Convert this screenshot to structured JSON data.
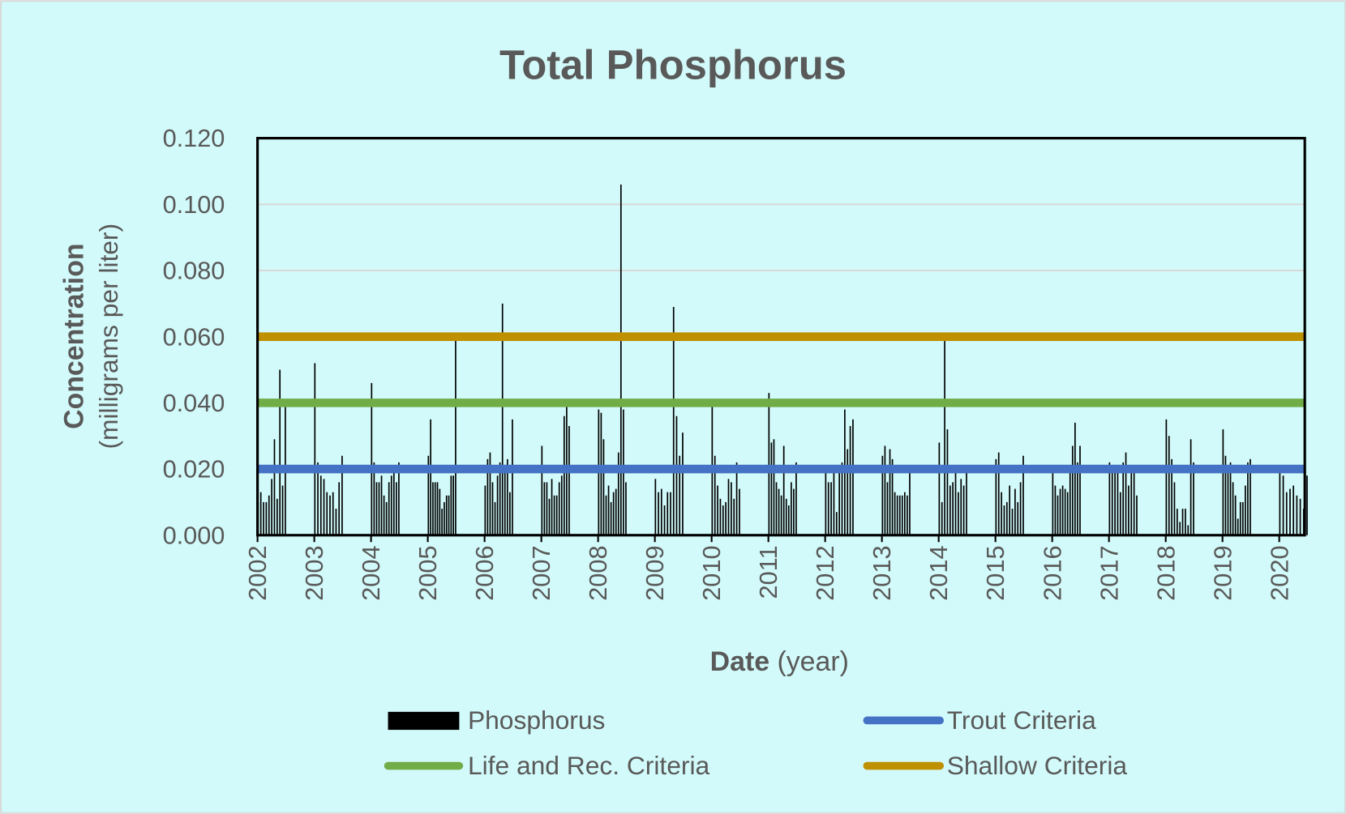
{
  "chart_data": {
    "type": "bar",
    "title": "Total Phosphorus",
    "xlabel_bold": "Date",
    "xlabel_rest": "(year)",
    "ylabel_bold": "Concentration",
    "ylabel_rest": "(milligrams per liter)",
    "ylim": [
      0,
      0.12
    ],
    "xlim": [
      2002,
      2020.45
    ],
    "yticks": [
      "0.000",
      "0.020",
      "0.040",
      "0.060",
      "0.080",
      "0.100",
      "0.120"
    ],
    "ytick_values": [
      0,
      0.02,
      0.04,
      0.06,
      0.08,
      0.1,
      0.12
    ],
    "xticks": [
      2002,
      2003,
      2004,
      2005,
      2006,
      2007,
      2008,
      2009,
      2010,
      2011,
      2012,
      2013,
      2014,
      2015,
      2016,
      2017,
      2018,
      2019,
      2020
    ],
    "grid": true,
    "legend_position": "bottom",
    "series": [
      {
        "name": "Phosphorus",
        "kind": "bar",
        "color": "#000000",
        "samples_by_year": {
          "2002": [
            0.01,
            0.013,
            0.01,
            0.01,
            0.012,
            0.017,
            0.029,
            0.011,
            0.05,
            0.015,
            0.04
          ],
          "2003": [
            0.052,
            0.022,
            0.018,
            0.017,
            0.013,
            0.012,
            0.013,
            0.008,
            0.016,
            0.024
          ],
          "2004": [
            0.046,
            0.022,
            0.016,
            0.016,
            0.018,
            0.012,
            0.01,
            0.016,
            0.018,
            0.02,
            0.016,
            0.022
          ],
          "2005": [
            0.024,
            0.035,
            0.016,
            0.016,
            0.016,
            0.014,
            0.008,
            0.01,
            0.012,
            0.012,
            0.018,
            0.018,
            0.059
          ],
          "2006": [
            0.015,
            0.023,
            0.025,
            0.016,
            0.01,
            0.018,
            0.022,
            0.07,
            0.021,
            0.023,
            0.013,
            0.035
          ],
          "2007": [
            0.027,
            0.016,
            0.016,
            0.011,
            0.017,
            0.012,
            0.012,
            0.016,
            0.018,
            0.036,
            0.039,
            0.033
          ],
          "2008": [
            0.038,
            0.037,
            0.029,
            0.012,
            0.015,
            0.01,
            0.013,
            0.014,
            0.025,
            0.106,
            0.038,
            0.016
          ],
          "2009": [
            0.017,
            0.013,
            0.014,
            0.009,
            0.013,
            0.013,
            0.069,
            0.036,
            0.024,
            0.031
          ],
          "2010": [
            0.039,
            0.024,
            0.015,
            0.011,
            0.009,
            0.01,
            0.017,
            0.016,
            0.011,
            0.022,
            0.014
          ],
          "2011": [
            0.043,
            0.028,
            0.029,
            0.016,
            0.014,
            0.012,
            0.027,
            0.011,
            0.009,
            0.016,
            0.014,
            0.022
          ],
          "2012": [
            0.019,
            0.016,
            0.016,
            0.019,
            0.007,
            0.019,
            0.022,
            0.038,
            0.026,
            0.033,
            0.035
          ],
          "2013": [
            0.024,
            0.027,
            0.016,
            0.026,
            0.023,
            0.013,
            0.012,
            0.012,
            0.012,
            0.013,
            0.012,
            0.019
          ],
          "2014": [
            0.028,
            0.01,
            0.059,
            0.032,
            0.015,
            0.016,
            0.019,
            0.013,
            0.017,
            0.015,
            0.019
          ],
          "2015": [
            0.023,
            0.025,
            0.013,
            0.009,
            0.01,
            0.015,
            0.008,
            0.014,
            0.01,
            0.016,
            0.024
          ],
          "2016": [
            0.019,
            0.015,
            0.012,
            0.014,
            0.015,
            0.014,
            0.013,
            0.02,
            0.027,
            0.034,
            0.022,
            0.027
          ],
          "2017": [
            0.022,
            0.021,
            0.021,
            0.02,
            0.013,
            0.022,
            0.025,
            0.015,
            0.019,
            0.02,
            0.012
          ],
          "2018": [
            0.035,
            0.03,
            0.023,
            0.016,
            0.008,
            0.004,
            0.008,
            0.008,
            0.003,
            0.029,
            0.022
          ],
          "2019": [
            0.032,
            0.024,
            0.021,
            0.022,
            0.016,
            0.012,
            0.005,
            0.01,
            0.01,
            0.015,
            0.022,
            0.023
          ],
          "2020": [
            0.019,
            0.018,
            0.013,
            0.014,
            0.015,
            0.012,
            0.011,
            0.008,
            0.018
          ]
        }
      },
      {
        "name": "Trout Criteria",
        "kind": "hline",
        "value": 0.02,
        "color": "#4472C4"
      },
      {
        "name": "Life and Rec. Criteria",
        "kind": "hline",
        "value": 0.04,
        "color": "#70AD47"
      },
      {
        "name": "Shallow Criteria",
        "kind": "hline",
        "value": 0.06,
        "color": "#BF9000"
      }
    ],
    "colors": {
      "background": "#D3FAFA",
      "text": "#595959",
      "gridline": "#D9D9D9",
      "frame": "#000000"
    }
  }
}
